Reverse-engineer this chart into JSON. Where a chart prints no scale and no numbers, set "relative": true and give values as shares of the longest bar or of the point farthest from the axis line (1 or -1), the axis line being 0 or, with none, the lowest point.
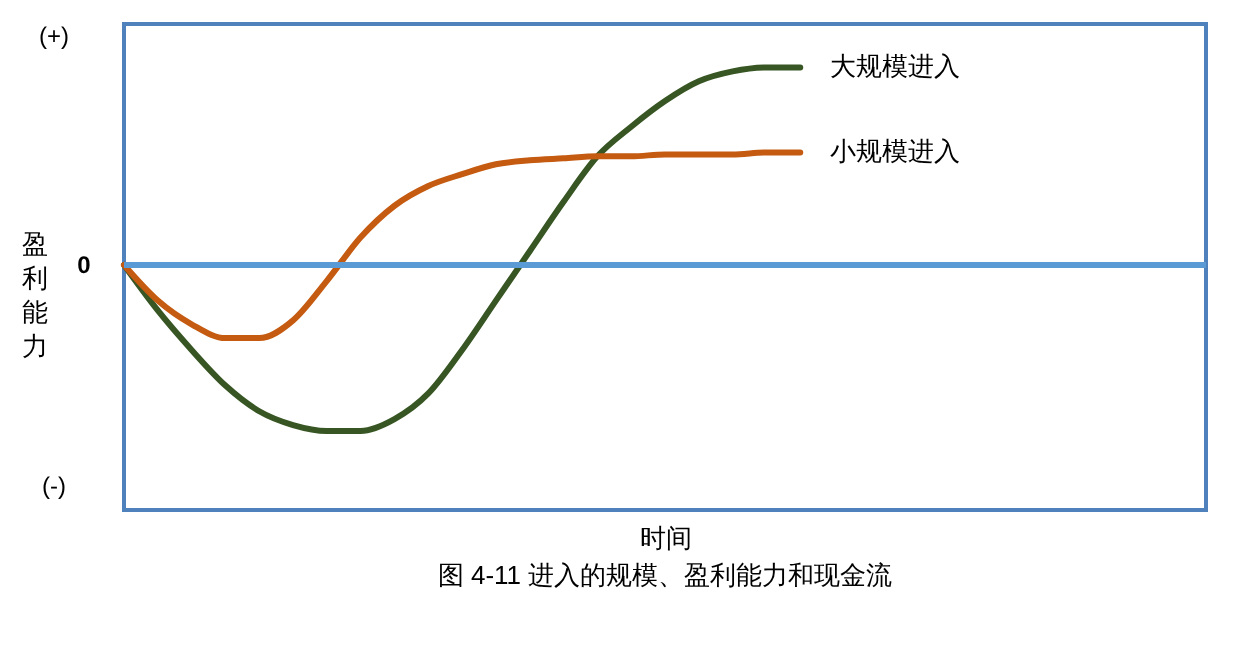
{
  "chart_data": {
    "type": "line",
    "relative": true,
    "title": "图 4-11 进入的规模、盈利能力和现金流",
    "xlabel": "时间",
    "ylabel": "盈利能力",
    "categories": [
      null,
      null,
      null,
      null,
      null,
      null,
      null,
      null,
      null,
      null,
      null,
      null,
      null,
      null,
      null,
      null,
      null,
      null,
      null,
      null,
      null,
      null,
      null,
      null,
      null,
      null,
      null,
      null,
      null,
      null,
      null,
      null,
      null
    ],
    "series": [
      {
        "name": "大规模进入",
        "color": "#375623",
        "values": [
          0,
          -0.23,
          -0.43,
          -0.61,
          -0.74,
          -0.81,
          -0.84,
          -0.84,
          -0.78,
          -0.65,
          -0.43,
          -0.18,
          0.07,
          0.32,
          0.55,
          0.7,
          0.83,
          0.93,
          0.98,
          1,
          1,
          null,
          null,
          null,
          null,
          null,
          null,
          null,
          null,
          null,
          null,
          null,
          null
        ]
      },
      {
        "name": "小规模进入",
        "color": "#c55a11",
        "values": [
          0,
          -0.18,
          -0.3,
          -0.37,
          -0.37,
          -0.28,
          -0.08,
          0.14,
          0.3,
          0.4,
          0.46,
          0.51,
          0.53,
          0.54,
          0.55,
          0.55,
          0.56,
          0.56,
          0.56,
          0.57,
          0.57,
          null,
          null,
          null,
          null,
          null,
          null,
          null,
          null,
          null,
          null,
          null,
          null
        ]
      }
    ],
    "ref_lines": [
      {
        "axis": "y",
        "value": 0,
        "label": "0",
        "color": "#5b9bd5"
      }
    ],
    "annotations": [
      "(+)",
      "(-)"
    ]
  }
}
